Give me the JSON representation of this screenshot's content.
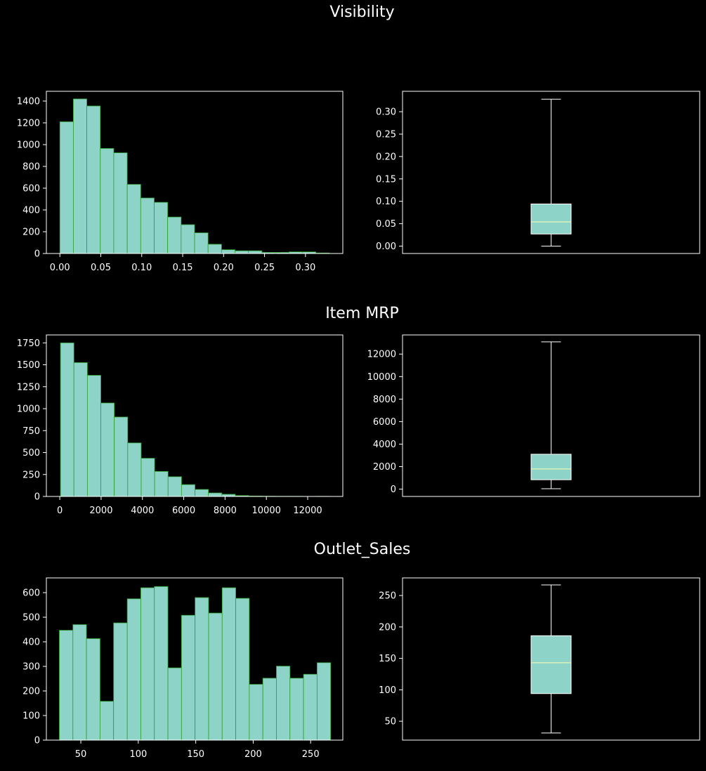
{
  "chart_data": [
    {
      "type": "histogram",
      "title": "Visibility",
      "xlim": [
        -0.0165,
        0.3456
      ],
      "ylim": [
        0,
        1490
      ],
      "bin_edges": [
        0.0,
        0.01646,
        0.03291,
        0.04937,
        0.06583,
        0.08228,
        0.09874,
        0.1152,
        0.13165,
        0.14811,
        0.16457,
        0.18102,
        0.19748,
        0.21394,
        0.23039,
        0.24685,
        0.26331,
        0.27976,
        0.29622,
        0.31268,
        0.32913
      ],
      "counts": [
        1210,
        1420,
        1355,
        965,
        925,
        635,
        510,
        470,
        335,
        265,
        190,
        85,
        35,
        25,
        25,
        10,
        10,
        15,
        15,
        5
      ],
      "xticks": [
        0.0,
        0.05,
        0.1,
        0.15,
        0.2,
        0.25,
        0.3
      ],
      "xtick_labels": [
        "0.00",
        "0.05",
        "0.10",
        "0.15",
        "0.20",
        "0.25",
        "0.30"
      ],
      "yticks": [
        0,
        200,
        400,
        600,
        800,
        1000,
        1200,
        1400
      ],
      "ytick_labels": [
        "0",
        "200",
        "400",
        "600",
        "800",
        "1000",
        "1200",
        "1400"
      ]
    },
    {
      "type": "box",
      "title": "Visibility",
      "ylim": [
        -0.0165,
        0.3456
      ],
      "whisker_low": 0.0,
      "q1": 0.027,
      "median": 0.054,
      "q3": 0.094,
      "whisker_high": 0.328,
      "yticks": [
        0.0,
        0.05,
        0.1,
        0.15,
        0.2,
        0.25,
        0.3
      ],
      "ytick_labels": [
        "0.00",
        "0.05",
        "0.10",
        "0.15",
        "0.20",
        "0.25",
        "0.30"
      ]
    },
    {
      "type": "histogram",
      "title": "Item MRP",
      "xlim": [
        -650,
        13700
      ],
      "ylim": [
        0,
        1840
      ],
      "bin_edges": [
        33,
        684,
        1335,
        1986,
        2637,
        3288,
        3939,
        4590,
        5241,
        5892,
        6543,
        7194,
        7845,
        8496,
        9147,
        9798,
        10449,
        11100,
        11751,
        12402,
        13053
      ],
      "counts": [
        1750,
        1525,
        1380,
        1065,
        905,
        610,
        435,
        285,
        225,
        135,
        80,
        40,
        25,
        10,
        5,
        3,
        2,
        2,
        1,
        2
      ],
      "xticks": [
        0,
        2000,
        4000,
        6000,
        8000,
        10000,
        12000
      ],
      "xtick_labels": [
        "0",
        "2000",
        "4000",
        "6000",
        "8000",
        "10000",
        "12000"
      ],
      "yticks": [
        0,
        250,
        500,
        750,
        1000,
        1250,
        1500,
        1750
      ],
      "ytick_labels": [
        "0",
        "250",
        "500",
        "750",
        "1000",
        "1250",
        "1500",
        "1750"
      ]
    },
    {
      "type": "box",
      "title": "Item MRP",
      "ylim": [
        -650,
        13700
      ],
      "whisker_low": 33,
      "q1": 834,
      "median": 1794,
      "q3": 3101,
      "whisker_high": 13087,
      "yticks": [
        0,
        2000,
        4000,
        6000,
        8000,
        10000,
        12000
      ],
      "ytick_labels": [
        "0",
        "2000",
        "4000",
        "6000",
        "8000",
        "10000",
        "12000"
      ]
    },
    {
      "type": "histogram",
      "title": "Outlet_Sales",
      "xlim": [
        20,
        278
      ],
      "ylim": [
        0,
        660
      ],
      "bin_edges": [
        31.3,
        43.1,
        54.9,
        66.7,
        78.5,
        90.4,
        102.2,
        114.0,
        125.8,
        137.6,
        149.4,
        161.2,
        173.0,
        184.8,
        196.6,
        208.4,
        220.2,
        232.0,
        243.8,
        255.6,
        267.4
      ],
      "counts": [
        447,
        470,
        413,
        158,
        477,
        575,
        620,
        625,
        294,
        508,
        580,
        517,
        620,
        577,
        227,
        252,
        301,
        252,
        268,
        315
      ],
      "xticks": [
        50,
        100,
        150,
        200,
        250
      ],
      "xtick_labels": [
        "50",
        "100",
        "150",
        "200",
        "250"
      ],
      "yticks": [
        0,
        100,
        200,
        300,
        400,
        500,
        600
      ],
      "ytick_labels": [
        "0",
        "100",
        "200",
        "300",
        "400",
        "500",
        "600"
      ]
    },
    {
      "type": "box",
      "title": "Outlet_Sales",
      "ylim": [
        20,
        278
      ],
      "whisker_low": 31.3,
      "q1": 94,
      "median": 143,
      "q3": 186,
      "whisker_high": 266.9,
      "yticks": [
        50,
        100,
        150,
        200,
        250
      ],
      "ytick_labels": [
        "50",
        "100",
        "150",
        "200",
        "250"
      ]
    }
  ],
  "row_titles": [
    "Visibility",
    "Item MRP",
    "Outlet_Sales"
  ],
  "colors": {
    "bar_fill": "#8dd3c7",
    "bar_edge": "#2ca02c",
    "axes": "#ffffff",
    "median": "#ffffb3",
    "background": "#000000"
  }
}
